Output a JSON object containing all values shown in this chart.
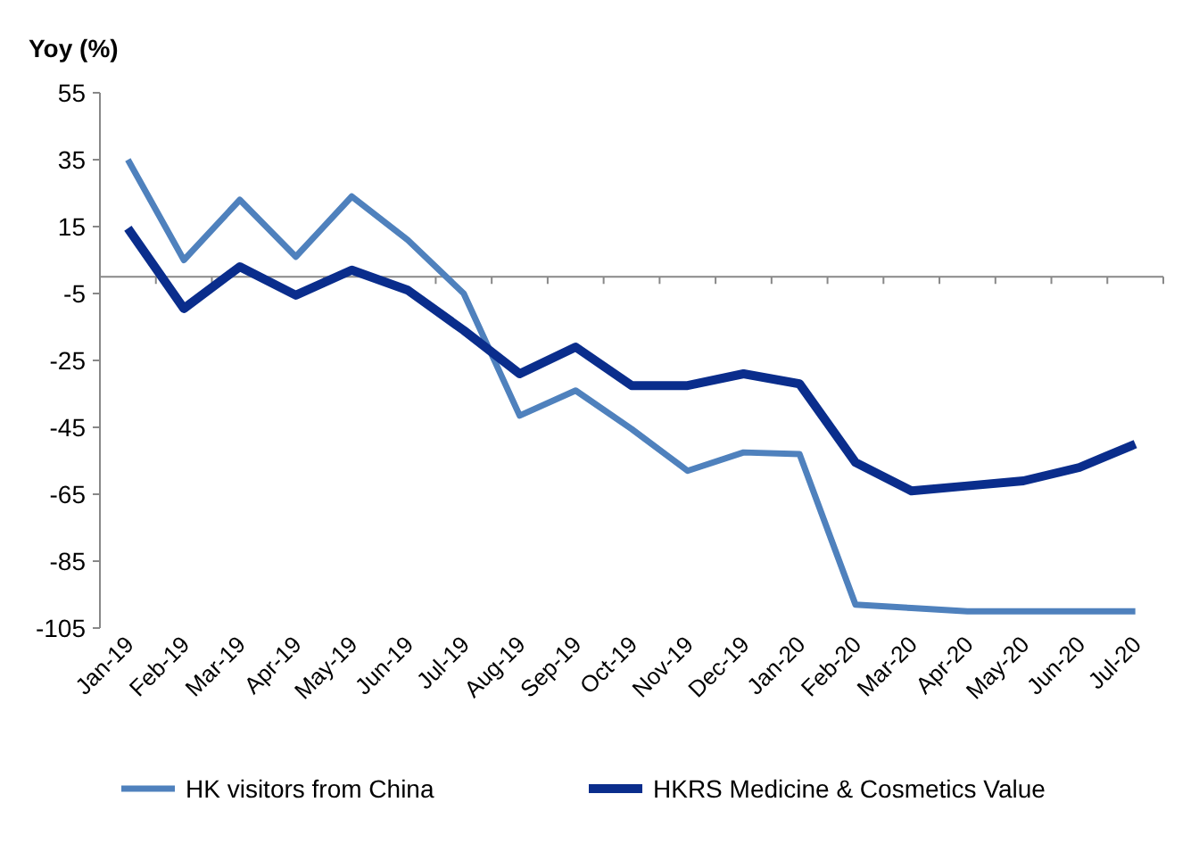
{
  "chart_data": {
    "type": "line",
    "ylabel": "Yoy (%)",
    "categories": [
      "Jan-19",
      "Feb-19",
      "Mar-19",
      "Apr-19",
      "May-19",
      "Jun-19",
      "Jul-19",
      "Aug-19",
      "Sep-19",
      "Oct-19",
      "Nov-19",
      "Dec-19",
      "Jan-20",
      "Feb-20",
      "Mar-20",
      "Apr-20",
      "May-20",
      "Jun-20",
      "Jul-20"
    ],
    "series": [
      {
        "name": "HK visitors from China",
        "color": "#4f81bd",
        "values": [
          35,
          5,
          23,
          6,
          24,
          11,
          -5,
          -41.5,
          -34,
          -45.5,
          -58,
          -52.5,
          -53,
          -98,
          -99,
          -100,
          -100,
          -100,
          -100
        ]
      },
      {
        "name": "HKRS Medicine & Cosmetics Value",
        "color": "#0a2d8c",
        "values": [
          14.5,
          -9.5,
          3,
          -5.5,
          2,
          -4,
          -16,
          -29,
          -21,
          -32.5,
          -32.5,
          -29,
          -32,
          -55.5,
          -64,
          -62.5,
          -61,
          -57,
          -50
        ]
      }
    ],
    "ylim": [
      -105,
      55
    ],
    "yticks": [
      55,
      35,
      15,
      -5,
      -25,
      -45,
      -65,
      -85,
      -105
    ],
    "grid": false,
    "legend": "bottom",
    "marker": "none",
    "line_style": "solid"
  }
}
